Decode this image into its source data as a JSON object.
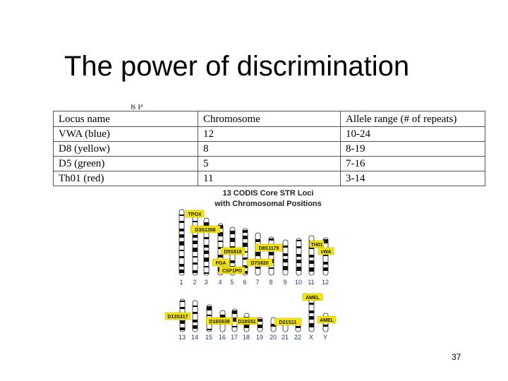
{
  "slide": {
    "title": "The power of discrimination",
    "number": "37",
    "cut_text": "g                           p"
  },
  "table": {
    "headers": [
      "Locus name",
      "Chromosome",
      "Allele range (# of repeats)"
    ],
    "rows": [
      [
        "VWA (blue)",
        "12",
        "10-24"
      ],
      [
        "D8 (yellow)",
        "8",
        "8-19"
      ],
      [
        "D5 (green)",
        "5",
        "7-16"
      ],
      [
        "Th01 (red)",
        "11",
        "3-14"
      ]
    ]
  },
  "figure": {
    "title_line1": "13 CODIS Core STR Loci",
    "title_line2": "with Chromosomal Positions",
    "top_row_numbers": [
      "1",
      "2",
      "3",
      "4",
      "5",
      "6",
      "7",
      "8",
      "9",
      "10",
      "11",
      "12"
    ],
    "bottom_row_numbers": [
      "13",
      "14",
      "15",
      "16",
      "17",
      "18",
      "19",
      "20",
      "21",
      "22",
      "X",
      "Y"
    ],
    "loci_labels": [
      "TPOX",
      "D3S1358",
      "D5S818",
      "D8S1179",
      "TH01",
      "vWA",
      "FGA",
      "D7S820",
      "CSF1PO",
      "AMEL",
      "D13S317",
      "D16S539",
      "D18S51",
      "D21S11",
      "AMEL"
    ],
    "label_color": "#f5e60a"
  }
}
